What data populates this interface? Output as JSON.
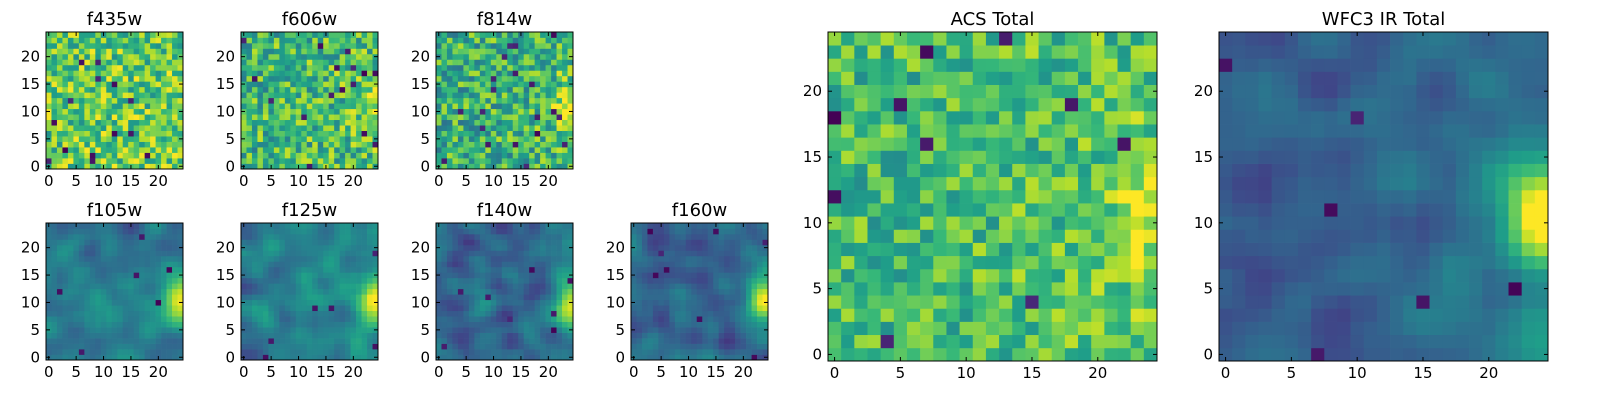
{
  "chart_data": [
    {
      "type": "heatmap",
      "title": "f435w",
      "colormap": "viridis",
      "grid_size": 25,
      "ylim": [
        0,
        24
      ],
      "xticks": [
        "0",
        "5",
        "10",
        "15",
        "20"
      ],
      "yticks": [
        "0",
        "5",
        "10",
        "15",
        "20"
      ],
      "texture": "noisy",
      "base": 0.75,
      "noise": 0.5,
      "xgrad": 0.0,
      "edge_boost": 0.0,
      "dark_spots": 14
    },
    {
      "type": "heatmap",
      "title": "f606w",
      "colormap": "viridis",
      "grid_size": 25,
      "ylim": [
        0,
        24
      ],
      "xticks": [
        "0",
        "5",
        "10",
        "15",
        "20"
      ],
      "yticks": [
        "0",
        "5",
        "10",
        "15",
        "20"
      ],
      "texture": "noisy",
      "base": 0.68,
      "noise": 0.5,
      "xgrad": 0.05,
      "edge_boost": 0.2,
      "dark_spots": 16
    },
    {
      "type": "heatmap",
      "title": "f814w",
      "colormap": "viridis",
      "grid_size": 25,
      "ylim": [
        0,
        24
      ],
      "xticks": [
        "0",
        "5",
        "10",
        "15",
        "20"
      ],
      "yticks": [
        "0",
        "5",
        "10",
        "15",
        "20"
      ],
      "texture": "noisy",
      "base": 0.65,
      "noise": 0.5,
      "xgrad": 0.05,
      "edge_boost": 0.3,
      "dark_spots": 20
    },
    {
      "type": "heatmap",
      "title": "f105w",
      "colormap": "viridis",
      "grid_size": 25,
      "ylim": [
        0,
        24
      ],
      "xticks": [
        "0",
        "5",
        "10",
        "15",
        "20"
      ],
      "yticks": [
        "0",
        "5",
        "10",
        "15",
        "20"
      ],
      "texture": "smooth",
      "base": 0.38,
      "noise": 0.35,
      "xgrad": 0.05,
      "edge_boost": 0.5,
      "dark_spots": 6
    },
    {
      "type": "heatmap",
      "title": "f125w",
      "colormap": "viridis",
      "grid_size": 25,
      "ylim": [
        0,
        24
      ],
      "xticks": [
        "0",
        "5",
        "10",
        "15",
        "20"
      ],
      "yticks": [
        "0",
        "5",
        "10",
        "15",
        "20"
      ],
      "texture": "smooth",
      "base": 0.42,
      "noise": 0.35,
      "xgrad": 0.05,
      "edge_boost": 0.5,
      "dark_spots": 6
    },
    {
      "type": "heatmap",
      "title": "f140w",
      "colormap": "viridis",
      "grid_size": 25,
      "ylim": [
        0,
        24
      ],
      "xticks": [
        "0",
        "5",
        "10",
        "15",
        "20"
      ],
      "yticks": [
        "0",
        "5",
        "10",
        "15",
        "20"
      ],
      "texture": "smooth",
      "base": 0.36,
      "noise": 0.35,
      "xgrad": 0.05,
      "edge_boost": 0.55,
      "dark_spots": 8
    },
    {
      "type": "heatmap",
      "title": "f160w",
      "colormap": "viridis",
      "grid_size": 25,
      "ylim": [
        0,
        24
      ],
      "xticks": [
        "0",
        "5",
        "10",
        "15",
        "20"
      ],
      "yticks": [
        "0",
        "5",
        "10",
        "15",
        "20"
      ],
      "texture": "smooth",
      "base": 0.33,
      "noise": 0.35,
      "xgrad": 0.05,
      "edge_boost": 0.6,
      "dark_spots": 8
    },
    {
      "type": "heatmap",
      "title": "ACS Total",
      "colormap": "viridis",
      "grid_size": 25,
      "ylim": [
        0,
        24
      ],
      "xticks": [
        "0",
        "5",
        "10",
        "15",
        "20"
      ],
      "yticks": [
        "0",
        "5",
        "10",
        "15",
        "20"
      ],
      "texture": "noisy",
      "base": 0.7,
      "noise": 0.4,
      "xgrad": 0.05,
      "edge_boost": 0.25,
      "dark_spots": 10
    },
    {
      "type": "heatmap",
      "title": "WFC3 IR Total",
      "colormap": "viridis",
      "grid_size": 25,
      "ylim": [
        0,
        24
      ],
      "xticks": [
        "0",
        "5",
        "10",
        "15",
        "20"
      ],
      "yticks": [
        "0",
        "5",
        "10",
        "15",
        "20"
      ],
      "texture": "smooth",
      "base": 0.35,
      "noise": 0.3,
      "xgrad": 0.08,
      "edge_boost": 0.65,
      "dark_spots": 6
    }
  ]
}
